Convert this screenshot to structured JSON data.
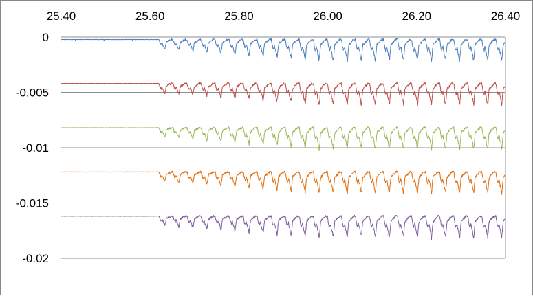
{
  "chart_data": {
    "type": "line",
    "title": "",
    "xlabel": "",
    "ylabel": "",
    "xlim": [
      25.4,
      26.4
    ],
    "ylim": [
      -0.02,
      0
    ],
    "x_axis_position": "top",
    "x_ticks": [
      25.4,
      25.6,
      25.8,
      26.0,
      26.2,
      26.4
    ],
    "x_tick_labels": [
      "25.40",
      "25.60",
      "25.80",
      "26.00",
      "26.20",
      "26.40"
    ],
    "y_ticks": [
      0,
      -0.005,
      -0.01,
      -0.015,
      -0.02
    ],
    "y_tick_labels": [
      "0",
      "-0.005",
      "-0.01",
      "-0.015",
      "-0.02"
    ],
    "grid": "horizontal",
    "legend": "none",
    "pulse_start_x": 25.62,
    "pulse_period": 0.0316,
    "pulse_amplitude": 0.0019,
    "series": [
      {
        "color": "#4a7ebb",
        "baseline": -0.00022
      },
      {
        "color": "#be4b48",
        "baseline": -0.0042
      },
      {
        "color": "#98b954",
        "baseline": -0.0082
      },
      {
        "color": "#e46c0a",
        "baseline": -0.0122
      },
      {
        "color": "#7d5fa0",
        "baseline": -0.0162
      }
    ]
  }
}
